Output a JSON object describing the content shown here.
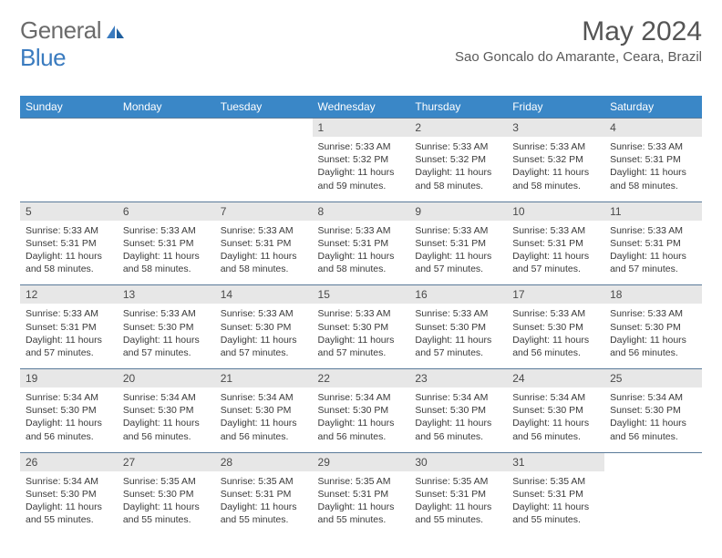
{
  "logo": {
    "part1": "General",
    "part2": "Blue"
  },
  "title": "May 2024",
  "location": "Sao Goncalo do Amarante, Ceara, Brazil",
  "colors": {
    "header_bg": "#3a87c7",
    "header_text": "#ffffff",
    "daynum_bg": "#e7e7e7",
    "border": "#5a7a99",
    "logo_blue": "#3a7bbf",
    "logo_gray": "#6b6b6b"
  },
  "days_of_week": [
    "Sunday",
    "Monday",
    "Tuesday",
    "Wednesday",
    "Thursday",
    "Friday",
    "Saturday"
  ],
  "weeks": [
    {
      "nums": [
        "",
        "",
        "",
        "1",
        "2",
        "3",
        "4"
      ],
      "details": [
        "",
        "",
        "",
        "Sunrise: 5:33 AM\nSunset: 5:32 PM\nDaylight: 11 hours and 59 minutes.",
        "Sunrise: 5:33 AM\nSunset: 5:32 PM\nDaylight: 11 hours and 58 minutes.",
        "Sunrise: 5:33 AM\nSunset: 5:32 PM\nDaylight: 11 hours and 58 minutes.",
        "Sunrise: 5:33 AM\nSunset: 5:31 PM\nDaylight: 11 hours and 58 minutes."
      ]
    },
    {
      "nums": [
        "5",
        "6",
        "7",
        "8",
        "9",
        "10",
        "11"
      ],
      "details": [
        "Sunrise: 5:33 AM\nSunset: 5:31 PM\nDaylight: 11 hours and 58 minutes.",
        "Sunrise: 5:33 AM\nSunset: 5:31 PM\nDaylight: 11 hours and 58 minutes.",
        "Sunrise: 5:33 AM\nSunset: 5:31 PM\nDaylight: 11 hours and 58 minutes.",
        "Sunrise: 5:33 AM\nSunset: 5:31 PM\nDaylight: 11 hours and 58 minutes.",
        "Sunrise: 5:33 AM\nSunset: 5:31 PM\nDaylight: 11 hours and 57 minutes.",
        "Sunrise: 5:33 AM\nSunset: 5:31 PM\nDaylight: 11 hours and 57 minutes.",
        "Sunrise: 5:33 AM\nSunset: 5:31 PM\nDaylight: 11 hours and 57 minutes."
      ]
    },
    {
      "nums": [
        "12",
        "13",
        "14",
        "15",
        "16",
        "17",
        "18"
      ],
      "details": [
        "Sunrise: 5:33 AM\nSunset: 5:31 PM\nDaylight: 11 hours and 57 minutes.",
        "Sunrise: 5:33 AM\nSunset: 5:30 PM\nDaylight: 11 hours and 57 minutes.",
        "Sunrise: 5:33 AM\nSunset: 5:30 PM\nDaylight: 11 hours and 57 minutes.",
        "Sunrise: 5:33 AM\nSunset: 5:30 PM\nDaylight: 11 hours and 57 minutes.",
        "Sunrise: 5:33 AM\nSunset: 5:30 PM\nDaylight: 11 hours and 57 minutes.",
        "Sunrise: 5:33 AM\nSunset: 5:30 PM\nDaylight: 11 hours and 56 minutes.",
        "Sunrise: 5:33 AM\nSunset: 5:30 PM\nDaylight: 11 hours and 56 minutes."
      ]
    },
    {
      "nums": [
        "19",
        "20",
        "21",
        "22",
        "23",
        "24",
        "25"
      ],
      "details": [
        "Sunrise: 5:34 AM\nSunset: 5:30 PM\nDaylight: 11 hours and 56 minutes.",
        "Sunrise: 5:34 AM\nSunset: 5:30 PM\nDaylight: 11 hours and 56 minutes.",
        "Sunrise: 5:34 AM\nSunset: 5:30 PM\nDaylight: 11 hours and 56 minutes.",
        "Sunrise: 5:34 AM\nSunset: 5:30 PM\nDaylight: 11 hours and 56 minutes.",
        "Sunrise: 5:34 AM\nSunset: 5:30 PM\nDaylight: 11 hours and 56 minutes.",
        "Sunrise: 5:34 AM\nSunset: 5:30 PM\nDaylight: 11 hours and 56 minutes.",
        "Sunrise: 5:34 AM\nSunset: 5:30 PM\nDaylight: 11 hours and 56 minutes."
      ]
    },
    {
      "nums": [
        "26",
        "27",
        "28",
        "29",
        "30",
        "31",
        ""
      ],
      "details": [
        "Sunrise: 5:34 AM\nSunset: 5:30 PM\nDaylight: 11 hours and 55 minutes.",
        "Sunrise: 5:35 AM\nSunset: 5:30 PM\nDaylight: 11 hours and 55 minutes.",
        "Sunrise: 5:35 AM\nSunset: 5:31 PM\nDaylight: 11 hours and 55 minutes.",
        "Sunrise: 5:35 AM\nSunset: 5:31 PM\nDaylight: 11 hours and 55 minutes.",
        "Sunrise: 5:35 AM\nSunset: 5:31 PM\nDaylight: 11 hours and 55 minutes.",
        "Sunrise: 5:35 AM\nSunset: 5:31 PM\nDaylight: 11 hours and 55 minutes.",
        ""
      ]
    }
  ]
}
